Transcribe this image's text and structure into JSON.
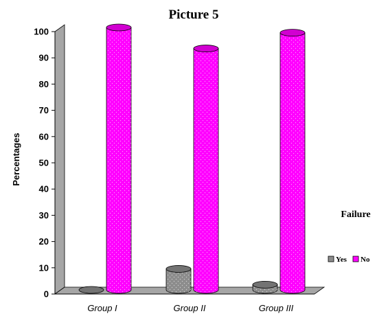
{
  "chart_data": {
    "type": "bar",
    "title": "Picture 5",
    "ylabel": "Percentages",
    "xlabel": "",
    "categories": [
      "Group I",
      "Group II",
      "Group III"
    ],
    "ylim": [
      0,
      100
    ],
    "yticks": [
      0,
      10,
      20,
      30,
      40,
      50,
      60,
      70,
      80,
      90,
      100
    ],
    "series": [
      {
        "name": "Yes",
        "values": [
          0,
          8,
          2
        ],
        "color": "#8c8c8c"
      },
      {
        "name": "No",
        "values": [
          100,
          92,
          98
        ],
        "color": "#ff00ff"
      }
    ],
    "legend": {
      "title": "Failure",
      "position": "right"
    },
    "style": "3d-cylinder",
    "grid": false
  }
}
